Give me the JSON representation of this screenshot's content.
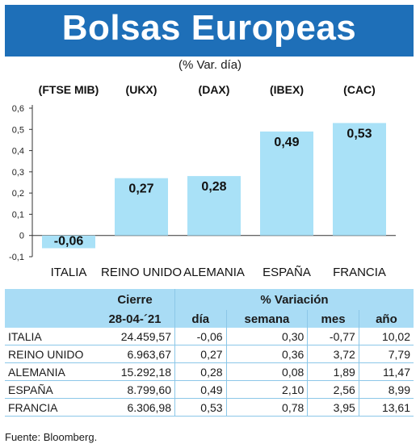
{
  "header": {
    "title": "Bolsas Europeas",
    "subtitle": "(% Var. día)"
  },
  "colors": {
    "title_bg": "#1e6fb8",
    "bar": "#a9e1f7",
    "table_header": "#a9dcf5"
  },
  "chart_data": {
    "type": "bar",
    "categories": [
      "ITALIA",
      "REINO UNIDO",
      "ALEMANIA",
      "ESPAÑA",
      "FRANCIA"
    ],
    "indices": [
      "(FTSE MIB)",
      "(UKX)",
      "(DAX)",
      "(IBEX)",
      "(CAC)"
    ],
    "values": [
      -0.06,
      0.27,
      0.28,
      0.49,
      0.53
    ],
    "value_labels": [
      "-0,06",
      "0,27",
      "0,28",
      "0,49",
      "0,53"
    ],
    "yticks": [
      "0,6",
      "0,5",
      "0,4",
      "0,3",
      "0,2",
      "0,1",
      "0",
      "-0,1"
    ],
    "ylim": [
      -0.1,
      0.6
    ],
    "grid": false
  },
  "table": {
    "header_group": {
      "close": "Cierre",
      "variation": "% Variación"
    },
    "close_date": "28-04-´21",
    "columns": [
      "día",
      "semana",
      "mes",
      "año"
    ],
    "rows": [
      {
        "name": "ITALIA",
        "close": "24.459,57",
        "dia": "-0,06",
        "semana": "0,30",
        "mes": "-0,77",
        "ano": "10,02"
      },
      {
        "name": "REINO UNIDO",
        "close": "6.963,67",
        "dia": "0,27",
        "semana": "0,36",
        "mes": "3,72",
        "ano": "7,79"
      },
      {
        "name": "ALEMANIA",
        "close": "15.292,18",
        "dia": "0,28",
        "semana": "0,08",
        "mes": "1,89",
        "ano": "11,47"
      },
      {
        "name": "ESPAÑA",
        "close": "8.799,60",
        "dia": "0,49",
        "semana": "2,10",
        "mes": "2,56",
        "ano": "8,99"
      },
      {
        "name": "FRANCIA",
        "close": "6.306,98",
        "dia": "0,53",
        "semana": "0,78",
        "mes": "3,95",
        "ano": "13,61"
      }
    ]
  },
  "footer": {
    "source": "Fuente: Bloomberg."
  }
}
